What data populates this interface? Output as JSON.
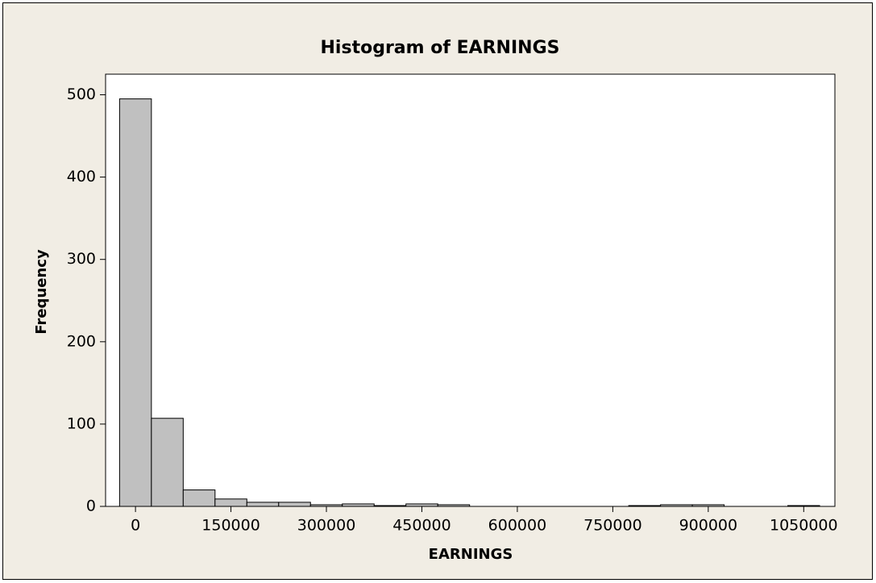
{
  "chart_data": {
    "type": "histogram",
    "title": "Histogram of EARNINGS",
    "x_label": "EARNINGS",
    "y_label": "Frequency",
    "bins": [
      -25000,
      25000,
      75000,
      125000,
      175000,
      225000,
      275000,
      325000,
      375000,
      425000,
      475000,
      525000,
      575000,
      625000,
      675000,
      725000,
      775000,
      825000,
      875000,
      925000,
      975000,
      1025000,
      1075000
    ],
    "values": [
      495,
      107,
      20,
      9,
      5,
      5,
      2,
      3,
      1,
      3,
      2,
      0,
      0,
      0,
      0,
      0,
      1,
      2,
      2,
      0,
      0,
      1
    ],
    "color": "#c0c0c0",
    "xlim": [
      -47000,
      1099000
    ],
    "xticks": [
      0,
      150000,
      300000,
      450000,
      600000,
      750000,
      900000,
      1050000
    ],
    "ylim": [
      0,
      525
    ],
    "yticks": [
      0,
      100,
      200,
      300,
      400,
      500
    ]
  }
}
